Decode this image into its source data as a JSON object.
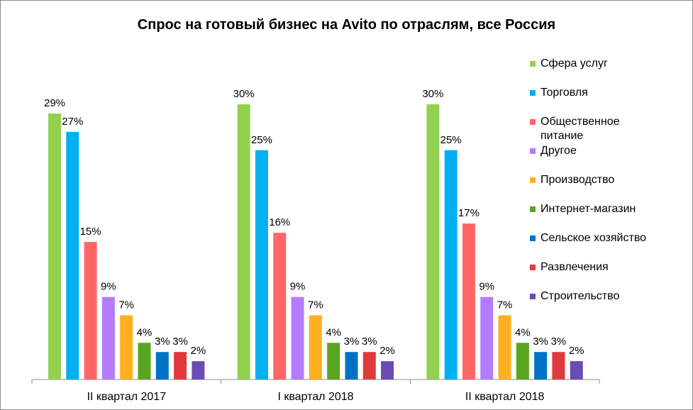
{
  "chart_data": {
    "type": "bar",
    "title": "Спрос на готовый бизнес на Avito по отраслям, все Россия",
    "categories": [
      "II квартал 2017",
      "I квартал 2018",
      "II квартал 2018"
    ],
    "unit": "%",
    "ylim": [
      0,
      30
    ],
    "grid": false,
    "legend_position": "right",
    "series": [
      {
        "name": "Сфера услуг",
        "color": "#92d050",
        "values": [
          29,
          30,
          30
        ],
        "labels": [
          "29%",
          "30%",
          "30%"
        ]
      },
      {
        "name": "Торговля",
        "color": "#00b0f0",
        "values": [
          27,
          25,
          25
        ],
        "labels": [
          "27%",
          "25%",
          "25%"
        ]
      },
      {
        "name": "Общественное питание",
        "color": "#ff6666",
        "values": [
          15,
          16,
          17
        ],
        "labels": [
          "15%",
          "16%",
          "17%"
        ]
      },
      {
        "name": "Другое",
        "color": "#b37cff",
        "values": [
          9,
          9,
          9
        ],
        "labels": [
          "9%",
          "9%",
          "9%"
        ]
      },
      {
        "name": "Производство",
        "color": "#ffb01f",
        "values": [
          7,
          7,
          7
        ],
        "labels": [
          "7%",
          "7%",
          "7%"
        ]
      },
      {
        "name": "Интернет-магазин",
        "color": "#5aa51f",
        "values": [
          4,
          4,
          4
        ],
        "labels": [
          "4%",
          "4%",
          "4%"
        ]
      },
      {
        "name": "Сельское хозяйство",
        "color": "#0072c6",
        "values": [
          3,
          3,
          3
        ],
        "labels": [
          "3%",
          "3%",
          "3%"
        ]
      },
      {
        "name": "Развлечения",
        "color": "#e0393e",
        "values": [
          3,
          3,
          3
        ],
        "labels": [
          "3%",
          "3%",
          "3%"
        ]
      },
      {
        "name": "Строительство",
        "color": "#6b4bb5",
        "values": [
          2,
          2,
          2
        ],
        "labels": [
          "2%",
          "2%",
          "2%"
        ]
      }
    ]
  }
}
